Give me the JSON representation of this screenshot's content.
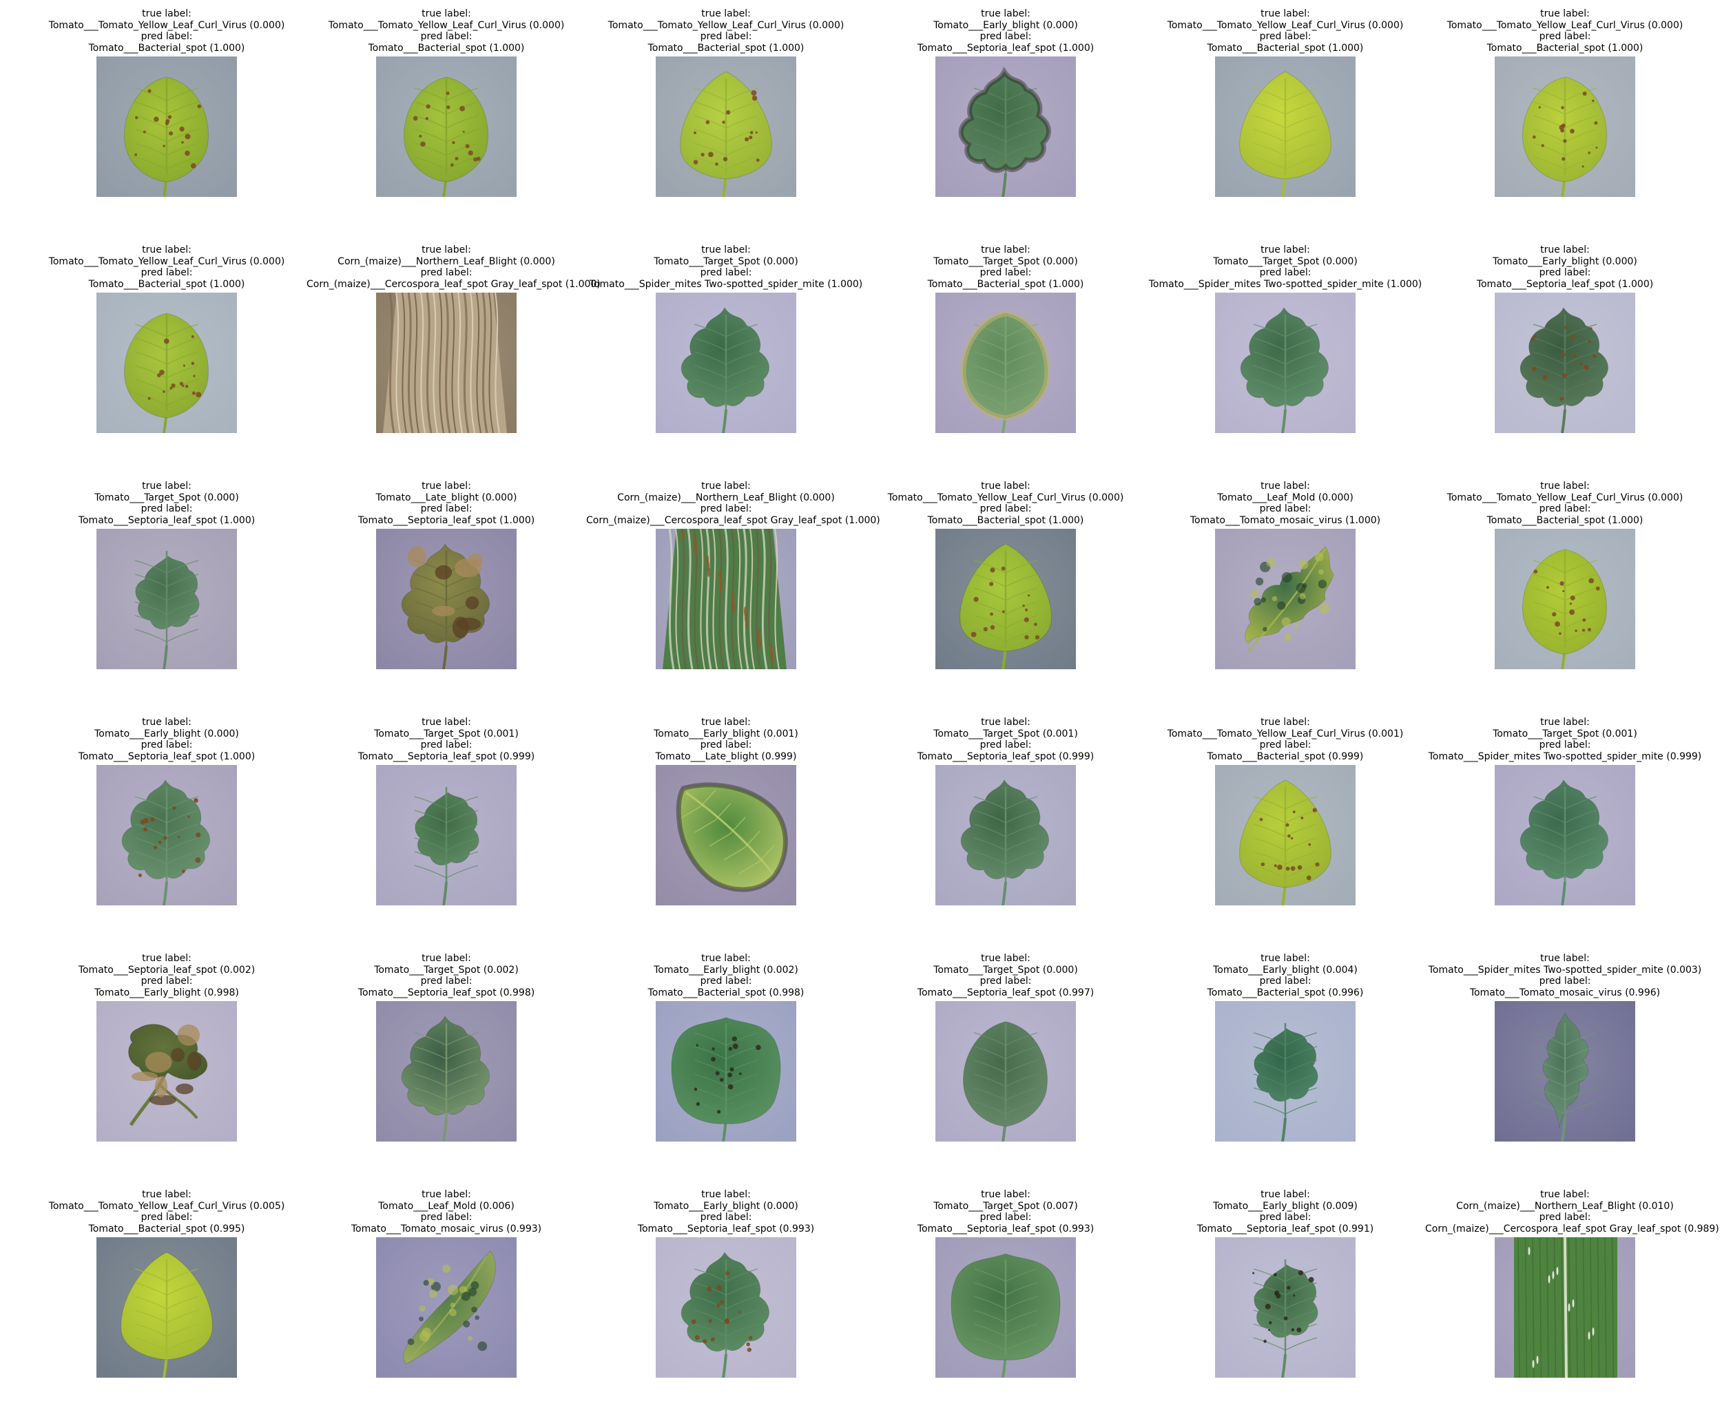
{
  "figure": {
    "rows": 6,
    "cols": 6,
    "caption_labels": {
      "true": "true label:",
      "pred": "pred label:"
    },
    "panels": [
      {
        "true_label": "Tomato___Tomato_Yellow_Leaf_Curl_Virus (0.000)",
        "pred_label": "Tomato___Bacterial_spot (1.000)",
        "leaf": "yellow",
        "bg": "#8f9aa6",
        "shape": "ovate",
        "leaf_color": "#a9c43a",
        "vein_color": "#86a82c",
        "spots": "brown-small"
      },
      {
        "true_label": "Tomato___Tomato_Yellow_Leaf_Curl_Virus (0.000)",
        "pred_label": "Tomato___Bacterial_spot (1.000)",
        "leaf": "yellow",
        "bg": "#96a1ac",
        "shape": "ovate",
        "leaf_color": "#a4c23c",
        "vein_color": "#84a62e",
        "spots": "brown-small"
      },
      {
        "true_label": "Tomato___Tomato_Yellow_Leaf_Curl_Virus (0.000)",
        "pred_label": "Tomato___Bacterial_spot (1.000)",
        "leaf": "yellow",
        "bg": "#9aa3ad",
        "shape": "heart",
        "leaf_color": "#b7cf44",
        "vein_color": "#96b334",
        "spots": "brown-small"
      },
      {
        "true_label": "Tomato___Early_blight (0.000)",
        "pred_label": "Tomato___Septoria_leaf_spot (1.000)",
        "leaf": "green",
        "bg": "#a49dbb",
        "shape": "lobed",
        "leaf_color": "#3f6b46",
        "vein_color": "#5d8862",
        "spots": "dark-edge"
      },
      {
        "true_label": "Tomato___Tomato_Yellow_Leaf_Curl_Virus (0.000)",
        "pred_label": "Tomato___Bacterial_spot (1.000)",
        "leaf": "yellow",
        "bg": "#98a3ae",
        "shape": "heart",
        "leaf_color": "#c7d83e",
        "vein_color": "#a6bc36",
        "spots": "none"
      },
      {
        "true_label": "Tomato___Tomato_Yellow_Leaf_Curl_Virus (0.000)",
        "pred_label": "Tomato___Bacterial_spot (1.000)",
        "leaf": "yellow",
        "bg": "#a3abb5",
        "shape": "ovate",
        "leaf_color": "#bcd03d",
        "vein_color": "#9ab432",
        "spots": "brown-small"
      },
      {
        "true_label": "Tomato___Tomato_Yellow_Leaf_Curl_Virus (0.000)",
        "pred_label": "Tomato___Bacterial_spot (1.000)",
        "leaf": "yellow",
        "bg": "#a7b2bd",
        "shape": "ovate",
        "leaf_color": "#aac63e",
        "vein_color": "#8aa830",
        "spots": "brown-small"
      },
      {
        "true_label": "Corn_(maize)___Northern_Leaf_Blight (0.000)",
        "pred_label": "Corn_(maize)___Cercospora_leaf_spot Gray_leaf_spot (1.000)",
        "leaf": "corn",
        "bg": "#8a7a62",
        "shape": "strip",
        "leaf_color": "#b7a68a",
        "vein_color": "#7f6c52",
        "spots": "stripes"
      },
      {
        "true_label": "Tomato___Target_Spot (0.000)",
        "pred_label": "Tomato___Spider_mites Two-spotted_spider_mite (1.000)",
        "leaf": "green",
        "bg": "#b1aecb",
        "shape": "lobed",
        "leaf_color": "#3c6b48",
        "vein_color": "#5f8e68",
        "spots": "none"
      },
      {
        "true_label": "Tomato___Target_Spot (0.000)",
        "pred_label": "Tomato___Bacterial_spot (1.000)",
        "leaf": "green",
        "bg": "#a69fbd",
        "shape": "ovate",
        "leaf_color": "#5f8a5a",
        "vein_color": "#7fa474",
        "spots": "yellow-edge"
      },
      {
        "true_label": "Tomato___Target_Spot (0.000)",
        "pred_label": "Tomato___Spider_mites Two-spotted_spider_mite (1.000)",
        "leaf": "green",
        "bg": "#b6b2cd",
        "shape": "lobed",
        "leaf_color": "#3f6a4a",
        "vein_color": "#62906c",
        "spots": "none"
      },
      {
        "true_label": "Tomato___Early_blight (0.000)",
        "pred_label": "Tomato___Septoria_leaf_spot (1.000)",
        "leaf": "green",
        "bg": "#b9b9cf",
        "shape": "lobed",
        "leaf_color": "#3b5c40",
        "vein_color": "#5a7c5c",
        "spots": "brown-small"
      },
      {
        "true_label": "Tomato___Target_Spot (0.000)",
        "pred_label": "Tomato___Septoria_leaf_spot (1.000)",
        "leaf": "green",
        "bg": "#a59fb5",
        "shape": "lobed-small",
        "leaf_color": "#456f4e",
        "vein_color": "#648c6a",
        "spots": "none"
      },
      {
        "true_label": "Tomato___Late_blight (0.000)",
        "pred_label": "Tomato___Septoria_leaf_spot (1.000)",
        "leaf": "blight",
        "bg": "#8c86a6",
        "shape": "lobed",
        "leaf_color": "#8c8a4a",
        "vein_color": "#6a6a3c",
        "spots": "blight"
      },
      {
        "true_label": "Corn_(maize)___Northern_Leaf_Blight (0.000)",
        "pred_label": "Corn_(maize)___Cercospora_leaf_spot Gray_leaf_spot (1.000)",
        "leaf": "corn",
        "bg": "#9e9db9",
        "shape": "strip",
        "leaf_color": "#4f7d48",
        "vein_color": "#cfd6c2",
        "spots": "brown-streak"
      },
      {
        "true_label": "Tomato___Tomato_Yellow_Leaf_Curl_Virus (0.000)",
        "pred_label": "Tomato___Bacterial_spot (1.000)",
        "leaf": "yellow",
        "bg": "#6f7b87",
        "shape": "heart",
        "leaf_color": "#a8c83c",
        "vein_color": "#8aab30",
        "spots": "brown-small"
      },
      {
        "true_label": "Tomato___Leaf_Mold (0.000)",
        "pred_label": "Tomato___Tomato_mosaic_virus (1.000)",
        "leaf": "mosaic",
        "bg": "#a49fb8",
        "shape": "lobed-diag",
        "leaf_color": "#3f6e47",
        "vein_color": "#a7b44a",
        "spots": "mosaic"
      },
      {
        "true_label": "Tomato___Tomato_Yellow_Leaf_Curl_Virus (0.000)",
        "pred_label": "Tomato___Bacterial_spot (1.000)",
        "leaf": "yellow",
        "bg": "#a5afba",
        "shape": "ovate",
        "leaf_color": "#b2cc38",
        "vein_color": "#96b02e",
        "spots": "brown-small"
      },
      {
        "true_label": "Tomato___Early_blight (0.000)",
        "pred_label": "Tomato___Septoria_leaf_spot (1.000)",
        "leaf": "green",
        "bg": "#a7a1bb",
        "shape": "lobed",
        "leaf_color": "#4a7350",
        "vein_color": "#6b9370",
        "spots": "brown-small"
      },
      {
        "true_label": "Tomato___Target_Spot (0.001)",
        "pred_label": "Tomato___Septoria_leaf_spot (0.999)",
        "leaf": "green",
        "bg": "#aaa5c1",
        "shape": "lobed-small",
        "leaf_color": "#3f6a45",
        "vein_color": "#5f8c64",
        "spots": "none"
      },
      {
        "true_label": "Tomato___Early_blight (0.001)",
        "pred_label": "Tomato___Late_blight (0.999)",
        "leaf": "green",
        "bg": "#948ca8",
        "shape": "ovate-tilted",
        "leaf_color": "#4f8a3e",
        "vein_color": "#b8c96a",
        "spots": "dark-edge"
      },
      {
        "true_label": "Tomato___Target_Spot (0.001)",
        "pred_label": "Tomato___Septoria_leaf_spot (0.999)",
        "leaf": "green",
        "bg": "#aaa7c2",
        "shape": "lobed",
        "leaf_color": "#3e6546",
        "vein_color": "#688f6c",
        "spots": "none"
      },
      {
        "true_label": "Tomato___Tomato_Yellow_Leaf_Curl_Virus (0.001)",
        "pred_label": "Tomato___Bacterial_spot (0.999)",
        "leaf": "yellow",
        "bg": "#a2acb6",
        "shape": "heart",
        "leaf_color": "#b8cf3c",
        "vein_color": "#9ab232",
        "spots": "brown-small"
      },
      {
        "true_label": "Tomato___Target_Spot (0.001)",
        "pred_label": "Tomato___Spider_mites Two-spotted_spider_mite (0.999)",
        "leaf": "green",
        "bg": "#aba7c4",
        "shape": "lobed",
        "leaf_color": "#3b6a4c",
        "vein_color": "#5e8f6e",
        "spots": "none"
      },
      {
        "true_label": "Tomato___Septoria_leaf_spot (0.002)",
        "pred_label": "Tomato___Early_blight (0.998)",
        "leaf": "blight",
        "bg": "#b3aec6",
        "shape": "curled",
        "leaf_color": "#62733c",
        "vein_color": "#4a5a2c",
        "spots": "blight"
      },
      {
        "true_label": "Tomato___Target_Spot (0.002)",
        "pred_label": "Tomato___Septoria_leaf_spot (0.998)",
        "leaf": "green",
        "bg": "#8f8aa8",
        "shape": "lobed",
        "leaf_color": "#3b5e44",
        "vein_color": "#7b9870",
        "spots": "none"
      },
      {
        "true_label": "Tomato___Early_blight (0.002)",
        "pred_label": "Tomato___Bacterial_spot (0.998)",
        "leaf": "green",
        "bg": "#9aa0c0",
        "shape": "wide",
        "leaf_color": "#3a7346",
        "vein_color": "#5b9262",
        "spots": "dark-small"
      },
      {
        "true_label": "Tomato___Target_Spot (0.000)",
        "pred_label": "Tomato___Septoria_leaf_spot (0.997)",
        "leaf": "green",
        "bg": "#aeaac6",
        "shape": "ovate",
        "leaf_color": "#466a4b",
        "vein_color": "#6a8c6c",
        "spots": "none"
      },
      {
        "true_label": "Tomato___Early_blight (0.004)",
        "pred_label": "Tomato___Bacterial_spot (0.996)",
        "leaf": "green",
        "bg": "#a9b2cc",
        "shape": "lobed-small",
        "leaf_color": "#33664a",
        "vein_color": "#4f8466",
        "spots": "none"
      },
      {
        "true_label": "Tomato___Spider_mites Two-spotted_spider_mite (0.003)",
        "pred_label": "Tomato___Tomato_mosaic_virus (0.996)",
        "leaf": "green",
        "bg": "#6f6e92",
        "shape": "lobed-narrow",
        "leaf_color": "#4a7257",
        "vein_color": "#6f957a",
        "spots": "none"
      },
      {
        "true_label": "Tomato___Tomato_Yellow_Leaf_Curl_Virus (0.005)",
        "pred_label": "Tomato___Bacterial_spot (0.995)",
        "leaf": "yellow",
        "bg": "#6e7a86",
        "shape": "heart",
        "leaf_color": "#c3d63c",
        "vein_color": "#a2ba32",
        "spots": "none"
      },
      {
        "true_label": "Tomato___Leaf_Mold (0.006)",
        "pred_label": "Tomato___Tomato_mosaic_virus (0.993)",
        "leaf": "green",
        "bg": "#8c89af",
        "shape": "diag",
        "leaf_color": "#537d47",
        "vein_color": "#98aa5c",
        "spots": "mosaic"
      },
      {
        "true_label": "Tomato___Early_blight (0.000)",
        "pred_label": "Tomato___Septoria_leaf_spot (0.993)",
        "leaf": "green",
        "bg": "#b7b4cc",
        "shape": "lobed",
        "leaf_color": "#3f6e48",
        "vein_color": "#5e8e66",
        "spots": "brown-small"
      },
      {
        "true_label": "Tomato___Target_Spot (0.007)",
        "pred_label": "Tomato___Septoria_leaf_spot (0.993)",
        "leaf": "green",
        "bg": "#9e9ab8",
        "shape": "wide",
        "leaf_color": "#437246",
        "vein_color": "#6b9966",
        "spots": "none"
      },
      {
        "true_label": "Tomato___Early_blight (0.009)",
        "pred_label": "Tomato___Septoria_leaf_spot (0.991)",
        "leaf": "green",
        "bg": "#b5b3cc",
        "shape": "lobed-small",
        "leaf_color": "#3f6845",
        "vein_color": "#5f8c66",
        "spots": "dark-small"
      },
      {
        "true_label": "Corn_(maize)___Northern_Leaf_Blight (0.010)",
        "pred_label": "Corn_(maize)___Cercospora_leaf_spot Gray_leaf_spot (0.989)",
        "leaf": "corn",
        "bg": "#a09cb8",
        "shape": "strip-vertical",
        "leaf_color": "#4f8340",
        "vein_color": "#d8dcc4",
        "spots": "white-streak"
      }
    ]
  }
}
